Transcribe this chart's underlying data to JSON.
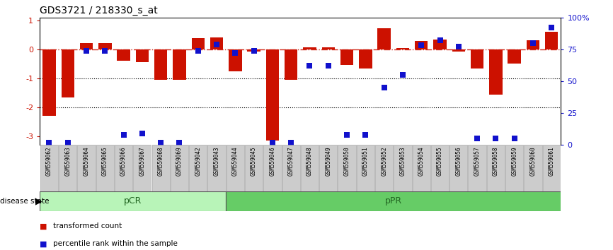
{
  "title": "GDS3721 / 218330_s_at",
  "samples": [
    "GSM559062",
    "GSM559063",
    "GSM559064",
    "GSM559065",
    "GSM559066",
    "GSM559067",
    "GSM559068",
    "GSM559069",
    "GSM559042",
    "GSM559043",
    "GSM559044",
    "GSM559045",
    "GSM559046",
    "GSM559047",
    "GSM559048",
    "GSM559049",
    "GSM559050",
    "GSM559051",
    "GSM559052",
    "GSM559053",
    "GSM559054",
    "GSM559055",
    "GSM559056",
    "GSM559057",
    "GSM559058",
    "GSM559059",
    "GSM559060",
    "GSM559061"
  ],
  "transformed_count": [
    -2.3,
    -1.65,
    0.22,
    0.22,
    -0.4,
    -0.45,
    -1.05,
    -1.05,
    0.38,
    0.42,
    -0.75,
    -0.08,
    -3.15,
    -1.05,
    0.08,
    0.08,
    -0.55,
    -0.65,
    0.72,
    0.05,
    0.3,
    0.35,
    -0.08,
    -0.65,
    -1.55,
    -0.5,
    0.32,
    0.6
  ],
  "percentile_rank": [
    2,
    2,
    74,
    74,
    8,
    9,
    2,
    2,
    74,
    79,
    72,
    74,
    2,
    2,
    62,
    62,
    8,
    8,
    45,
    55,
    78,
    82,
    77,
    5,
    5,
    5,
    80,
    92
  ],
  "group_pCR_count": 10,
  "bar_color": "#CC1100",
  "dot_color": "#1111CC",
  "ylim": [
    -3.3,
    1.1
  ],
  "right_ylim": [
    0,
    100
  ],
  "right_yticks": [
    0,
    25,
    50,
    75,
    100
  ],
  "right_yticklabels": [
    "0",
    "25",
    "50",
    "75",
    "100%"
  ],
  "left_yticks": [
    -3,
    -2,
    -1,
    0,
    1
  ],
  "hlines": [
    -1.0,
    -2.0
  ],
  "zero_line": 0,
  "pCR_color": "#b8f4b8",
  "pPR_color": "#66cc66",
  "label_bg_color": "#cccccc",
  "label_border_color": "#999999"
}
